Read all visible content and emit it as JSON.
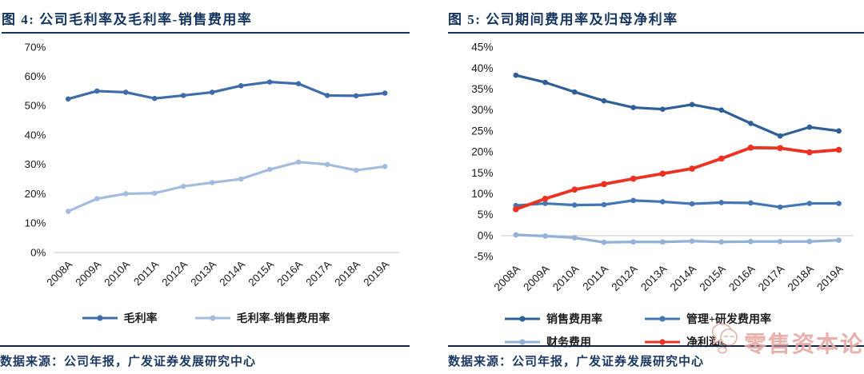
{
  "figures": [
    {
      "title": "图 4:  公司毛利率及毛利率-销售费用率",
      "source": "数据来源：公司年报，广发证券发展研究中心"
    },
    {
      "title": "图 5:  公司期间费用率及归母净利率",
      "source": "数据来源：公司年报，广发证券发展研究中心"
    }
  ],
  "watermark": {
    "label": "零售资本论",
    "icon": "chat-bubble-face-icon",
    "color": "#d67067"
  },
  "colors": {
    "title_navy": "#15355e",
    "rule_dark": "#10233f",
    "axis_text": "#1a1a1a",
    "zero_gridline": "#c9c9c9"
  },
  "chart_data": [
    {
      "type": "line",
      "title": "公司毛利率及毛利率-销售费用率",
      "categories": [
        "2008A",
        "2009A",
        "2010A",
        "2011A",
        "2012A",
        "2013A",
        "2014A",
        "2015A",
        "2016A",
        "2017A",
        "2018A",
        "2019A"
      ],
      "ylim": [
        0,
        70
      ],
      "ytick_step": 10,
      "ytick_suffix": "%",
      "grid": false,
      "zero_line": true,
      "legend_position": "bottom",
      "series": [
        {
          "name": "毛利率",
          "color": "#3f6ba8",
          "width": 3.2,
          "values": [
            52.3,
            55.0,
            54.6,
            52.5,
            53.5,
            54.6,
            56.8,
            58.1,
            57.5,
            53.5,
            53.4,
            54.3
          ]
        },
        {
          "name": "毛利率-销售费用率",
          "color": "#a3bcde",
          "width": 3.2,
          "values": [
            14.0,
            18.3,
            20.0,
            20.2,
            22.5,
            23.8,
            25.0,
            28.3,
            30.8,
            30.0,
            28.0,
            29.3
          ]
        }
      ]
    },
    {
      "type": "line",
      "title": "公司期间费用率及归母净利率",
      "categories": [
        "2008A",
        "2009A",
        "2010A",
        "2011A",
        "2012A",
        "2013A",
        "2014A",
        "2015A",
        "2016A",
        "2017A",
        "2018A",
        "2019A"
      ],
      "ylim": [
        -5,
        45
      ],
      "ytick_step": 5,
      "ytick_suffix": "%",
      "grid": false,
      "zero_line": true,
      "legend_position": "bottom",
      "series": [
        {
          "name": "销售费用率",
          "color": "#2e5f96",
          "width": 3.2,
          "values": [
            38.3,
            36.6,
            34.3,
            32.2,
            30.6,
            30.2,
            31.3,
            30.0,
            26.8,
            23.8,
            25.9,
            25.0
          ]
        },
        {
          "name": "管理+研发费用率",
          "color": "#4276b4",
          "width": 3.2,
          "values": [
            7.2,
            7.7,
            7.3,
            7.4,
            8.4,
            8.1,
            7.6,
            7.9,
            7.8,
            6.8,
            7.7,
            7.7
          ]
        },
        {
          "name": "财务费用",
          "color": "#93b1d7",
          "width": 3.2,
          "values": [
            0.2,
            -0.1,
            -0.5,
            -1.6,
            -1.5,
            -1.5,
            -1.3,
            -1.5,
            -1.4,
            -1.4,
            -1.4,
            -1.1
          ]
        },
        {
          "name": "净利润率",
          "color": "#ec3323",
          "width": 3.8,
          "values": [
            6.3,
            8.8,
            11.0,
            12.3,
            13.6,
            14.8,
            16.0,
            18.4,
            21.0,
            20.9,
            19.9,
            20.5
          ]
        }
      ]
    }
  ]
}
